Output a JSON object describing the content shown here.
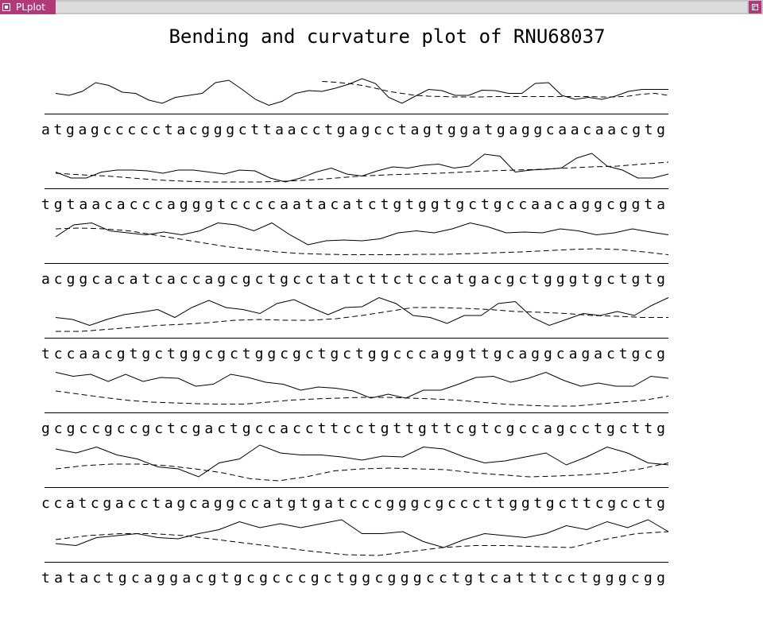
{
  "window": {
    "title": "PLplot",
    "menu_icon": "window-menu-icon",
    "maximize_icon": "maximize-icon"
  },
  "plot": {
    "title": "Bending and curvature plot of RNU68037",
    "colors": {
      "foreground": "#000000",
      "background": "#ffffff",
      "titlebar_accent": "#b03a78"
    }
  },
  "chart_data": {
    "type": "line",
    "rows": [
      {
        "sequence": "atgagccccctacgggcttaacctgagcctagtggatgaggcaacaacgtg",
        "bending": [
          0.35,
          0.3,
          0.4,
          0.62,
          0.55,
          0.38,
          0.35,
          0.18,
          0.1,
          0.25,
          0.3,
          0.35,
          0.62,
          0.68,
          0.45,
          0.2,
          0.05,
          0.15,
          0.35,
          0.42,
          0.4,
          0.48,
          0.58,
          0.72,
          0.6,
          0.25,
          0.1,
          0.28,
          0.45,
          0.42,
          0.3,
          0.3,
          0.43,
          0.42,
          0.35,
          0.35,
          0.6,
          0.62,
          0.3,
          0.2,
          0.25,
          0.2,
          0.28,
          0.4,
          0.45,
          0.45,
          0.45
        ],
        "curvature": [
          null,
          null,
          null,
          null,
          null,
          null,
          null,
          null,
          null,
          null,
          null,
          null,
          null,
          null,
          null,
          null,
          null,
          null,
          null,
          null,
          0.65,
          0.63,
          0.6,
          0.55,
          0.48,
          0.4,
          0.35,
          0.3,
          0.28,
          0.27,
          0.26,
          0.26,
          0.26,
          0.27,
          0.27,
          0.27,
          0.27,
          0.27,
          0.27,
          0.27,
          0.27,
          0.26,
          0.26,
          0.28,
          0.33,
          0.35,
          0.3
        ]
      },
      {
        "sequence": "tgtaacacccagggtccccaatacatctgtggtgctgccaacaggcggta",
        "bending": [
          0.25,
          0.1,
          0.1,
          0.25,
          0.3,
          0.3,
          0.28,
          0.22,
          0.3,
          0.3,
          0.25,
          0.2,
          0.3,
          0.28,
          0.1,
          0.0,
          0.1,
          0.25,
          0.35,
          0.2,
          0.15,
          0.28,
          0.38,
          0.35,
          0.42,
          0.45,
          0.35,
          0.4,
          0.7,
          0.65,
          0.25,
          0.3,
          0.32,
          0.35,
          0.6,
          0.72,
          0.4,
          0.3,
          0.1,
          0.1,
          0.2
        ],
        "curvature": [
          0.22,
          0.18,
          0.15,
          0.1,
          0.05,
          0.02,
          0.0,
          0.0,
          0.0,
          0.02,
          0.05,
          0.1,
          0.15,
          0.18,
          0.2,
          0.22,
          0.25,
          0.28,
          0.3,
          0.32,
          0.35,
          0.38,
          0.4,
          0.45,
          0.5
        ]
      },
      {
        "sequence": "acggcacatcaccagcgctgcctatcttctccatgacgctgggtgctgtg",
        "bending": [
          0.5,
          0.8,
          0.85,
          0.65,
          0.6,
          0.55,
          0.62,
          0.55,
          0.65,
          0.85,
          0.8,
          0.65,
          0.85,
          0.55,
          0.3,
          0.4,
          0.42,
          0.4,
          0.45,
          0.6,
          0.65,
          0.6,
          0.7,
          0.85,
          0.75,
          0.6,
          0.62,
          0.6,
          0.7,
          0.65,
          0.55,
          0.6,
          0.7,
          0.62,
          0.55
        ],
        "curvature": [
          0.7,
          0.72,
          0.7,
          0.65,
          0.55,
          0.45,
          0.35,
          0.25,
          0.18,
          0.12,
          0.08,
          0.06,
          0.05,
          0.05,
          0.05,
          0.06,
          0.06,
          0.08,
          0.1,
          0.12,
          0.15,
          0.18,
          0.2,
          0.18,
          0.12,
          0.05
        ]
      },
      {
        "sequence": "tccaacgtgctggcgctggcgctgctggcccaggttgcaggcagactgcg",
        "bending": [
          0.35,
          0.3,
          0.15,
          0.3,
          0.42,
          0.48,
          0.55,
          0.35,
          0.6,
          0.78,
          0.6,
          0.55,
          0.45,
          0.7,
          0.8,
          0.6,
          0.42,
          0.6,
          0.62,
          0.85,
          0.7,
          0.4,
          0.35,
          0.2,
          0.4,
          0.4,
          0.7,
          0.75,
          0.35,
          0.15,
          0.3,
          0.45,
          0.4,
          0.5,
          0.4,
          0.65,
          0.85
        ],
        "curvature": [
          0.0,
          0.0,
          0.05,
          0.1,
          0.15,
          0.18,
          0.22,
          0.28,
          0.3,
          0.28,
          0.28,
          0.32,
          0.4,
          0.5,
          0.6,
          0.6,
          0.58,
          0.55,
          0.5,
          0.48,
          0.45,
          0.4,
          0.38,
          0.35,
          0.35
        ]
      },
      {
        "sequence": "gcgccgccgctcgactgccaccttcctgttgttcgtcgccagcctgcttg",
        "bending": [
          0.85,
          0.75,
          0.8,
          0.62,
          0.8,
          0.62,
          0.72,
          0.7,
          0.5,
          0.55,
          0.8,
          0.72,
          0.6,
          0.55,
          0.4,
          0.48,
          0.45,
          0.38,
          0.2,
          0.3,
          0.2,
          0.4,
          0.4,
          0.55,
          0.72,
          0.75,
          0.6,
          0.7,
          0.85,
          0.65,
          0.5,
          0.58,
          0.5,
          0.5,
          0.75,
          0.7
        ],
        "curvature": [
          0.38,
          0.3,
          0.22,
          0.15,
          0.1,
          0.08,
          0.06,
          0.05,
          0.05,
          0.1,
          0.15,
          0.18,
          0.2,
          0.22,
          0.22,
          0.2,
          0.18,
          0.15,
          0.1,
          0.05,
          0.02,
          0.0,
          0.0,
          0.05,
          0.1,
          0.15,
          0.25
        ]
      },
      {
        "sequence": "ccatcgacctagcaggccatgtgatcccgggcgcccttggtgcttcgcctg",
        "bending": [
          0.8,
          0.7,
          0.85,
          0.65,
          0.55,
          0.35,
          0.3,
          0.1,
          0.45,
          0.55,
          0.9,
          0.7,
          0.65,
          0.65,
          0.6,
          0.52,
          0.62,
          0.6,
          0.85,
          0.8,
          0.6,
          0.45,
          0.5,
          0.6,
          0.7,
          0.4,
          0.6,
          0.85,
          0.7,
          0.45,
          0.4
        ],
        "curvature": [
          0.3,
          0.38,
          0.42,
          0.42,
          0.38,
          0.3,
          0.2,
          0.05,
          0.0,
          0.1,
          0.25,
          0.3,
          0.32,
          0.3,
          0.28,
          0.2,
          0.15,
          0.1,
          0.12,
          0.15,
          0.2,
          0.3,
          0.45
        ]
      },
      {
        "sequence": "tatactgcaggacgtgcgcccgctggcgggcctgtcatttcctgggcgg",
        "bending": [
          0.3,
          0.25,
          0.45,
          0.5,
          0.55,
          0.45,
          0.42,
          0.55,
          0.65,
          0.85,
          0.7,
          0.8,
          0.7,
          0.8,
          0.9,
          0.55,
          0.55,
          0.6,
          0.35,
          0.2,
          0.4,
          0.55,
          0.5,
          0.45,
          0.55,
          0.75,
          0.65,
          0.85,
          0.7,
          0.9,
          0.6
        ],
        "curvature": [
          0.4,
          0.5,
          0.55,
          0.55,
          0.5,
          0.4,
          0.3,
          0.2,
          0.1,
          0.02,
          0.0,
          0.1,
          0.2,
          0.25,
          0.25,
          0.22,
          0.2,
          0.4,
          0.55,
          0.6
        ]
      }
    ]
  }
}
